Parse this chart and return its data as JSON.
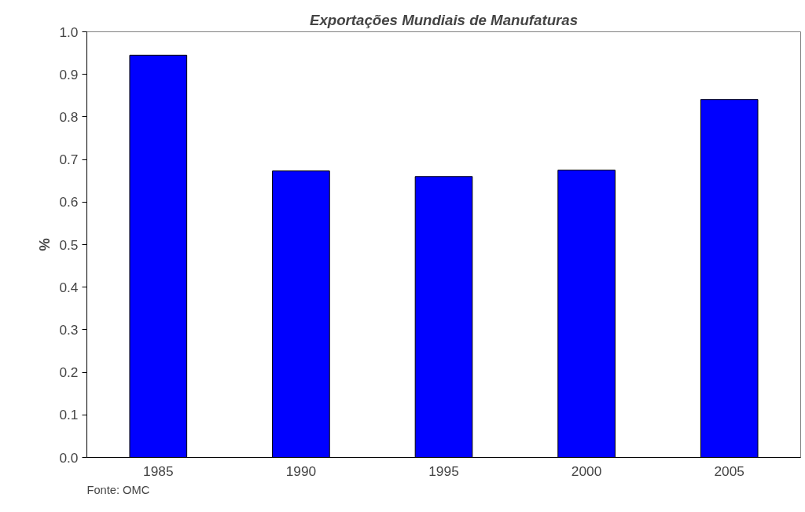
{
  "chart_data": {
    "type": "bar",
    "title": "Exportações Mundiais de Manufaturas",
    "ylabel": "%",
    "categories": [
      "1985",
      "1990",
      "1995",
      "2000",
      "2005"
    ],
    "values": [
      0.945,
      0.673,
      0.66,
      0.675,
      0.841
    ],
    "color": "#0000ff",
    "ylim": [
      0,
      1.0
    ],
    "yticks": [
      {
        "value": 0,
        "label": "0.0"
      },
      0.1,
      0.2,
      0.3,
      0.4,
      0.5,
      0.6,
      0.7,
      0.8,
      0.9,
      {
        "value": 1.0,
        "label": "1.0"
      }
    ],
    "grid": false,
    "annotations": [
      "Fonte: OMC"
    ]
  }
}
